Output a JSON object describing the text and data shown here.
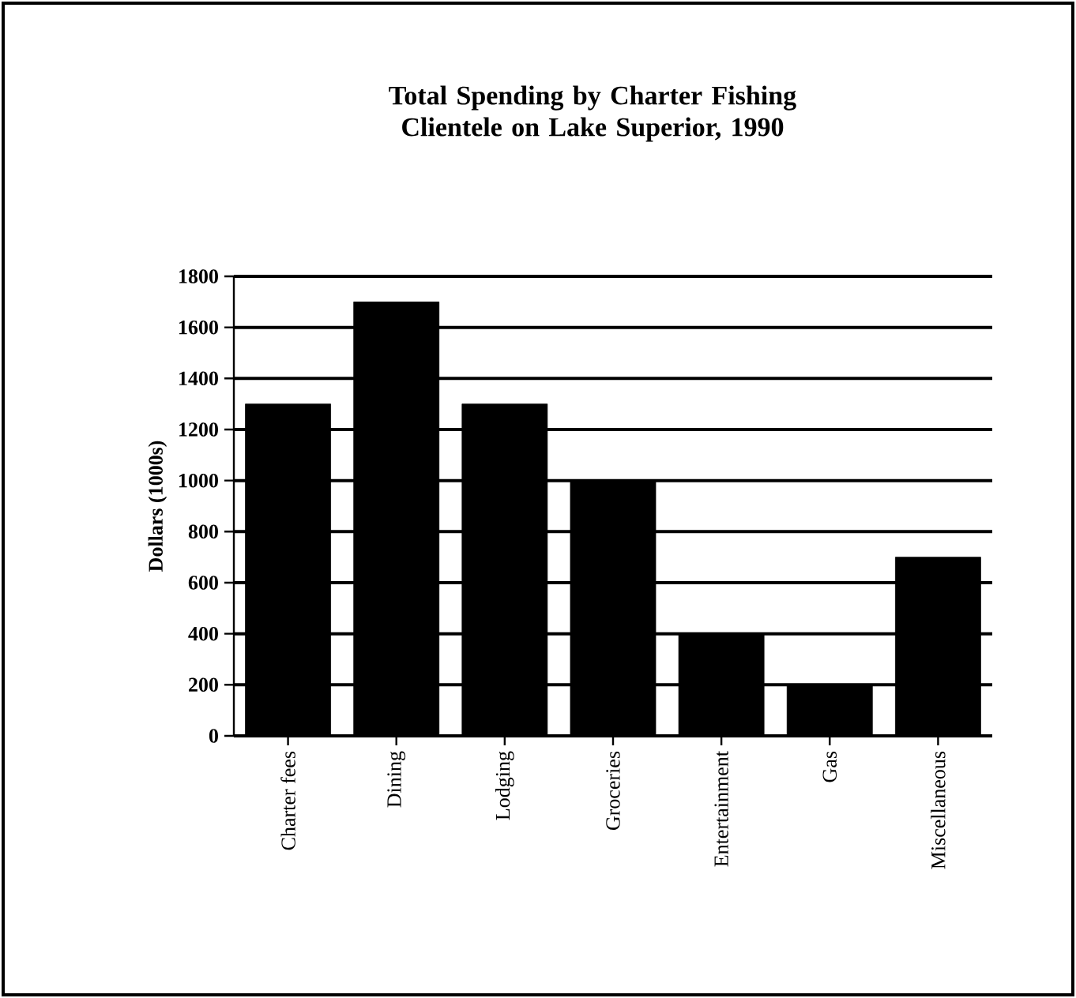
{
  "chart_data": {
    "type": "bar",
    "title": "Total Spending by Charter Fishing Clientele on Lake Superior, 1990",
    "ylabel": "Dollars (1000s)",
    "categories": [
      "Charter fees",
      "Dining",
      "Lodging",
      "Groceries",
      "Entertainment",
      "Gas",
      "Miscellaneous"
    ],
    "values": [
      1300,
      1700,
      1300,
      1000,
      400,
      200,
      700
    ],
    "color": "#000000",
    "ylim": [
      0,
      1800
    ],
    "yticks": [
      0,
      200,
      400,
      600,
      800,
      1000,
      1200,
      1400,
      1600,
      1800
    ],
    "grid": "y"
  }
}
